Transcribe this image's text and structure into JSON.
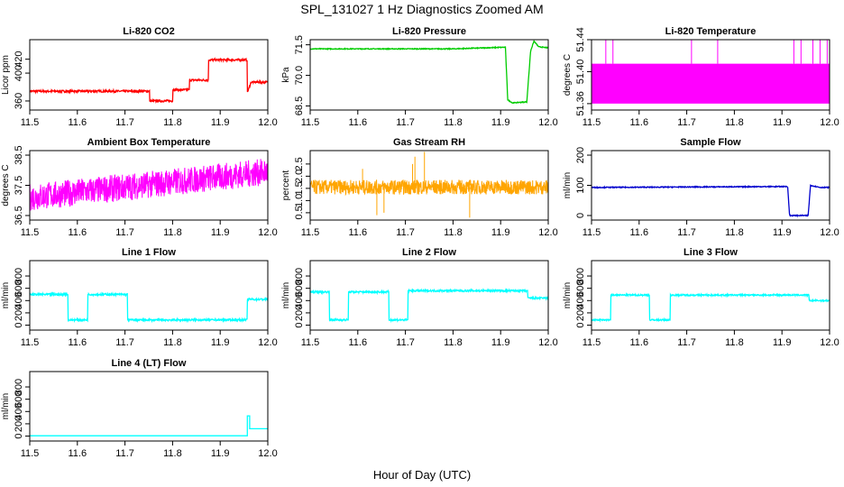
{
  "figure": {
    "main_title": "SPL_131027  1 Hz Diagnostics Zoomed AM",
    "xlabel": "Hour of Day (UTC)"
  },
  "chart_data": [
    {
      "type": "line",
      "title": "Li-820 CO2",
      "ylabel": "Licor ppm",
      "color": "#ff0000",
      "xlim": [
        11.5,
        12.0
      ],
      "ylim": [
        347,
        448
      ],
      "xticks": [
        "11.5",
        "11.6",
        "11.7",
        "11.8",
        "11.9",
        "12.0"
      ],
      "yticks": [
        360,
        400,
        420
      ],
      "noise": 1.5,
      "series": [
        {
          "x": [
            11.5,
            11.752,
            11.752,
            11.8,
            11.8,
            11.835,
            11.835,
            11.875,
            11.875,
            11.957,
            11.957,
            11.965,
            12.0
          ],
          "values": [
            374,
            374,
            360,
            360,
            376,
            376,
            390,
            390,
            419,
            419,
            372,
            387,
            387
          ]
        }
      ]
    },
    {
      "type": "line",
      "title": "Li-820 Pressure",
      "ylabel": "kPa",
      "color": "#00cc00",
      "xlim": [
        11.5,
        12.0
      ],
      "ylim": [
        68.3,
        71.75
      ],
      "xticks": [
        "11.5",
        "11.6",
        "11.7",
        "11.8",
        "11.9",
        "12.0"
      ],
      "yticks": [
        "68.5",
        "70.0",
        "71.5"
      ],
      "noise": 0.02,
      "series": [
        {
          "x": [
            11.5,
            11.8,
            11.91,
            11.915,
            11.925,
            11.955,
            11.963,
            11.97,
            11.98,
            12.0
          ],
          "values": [
            71.3,
            71.3,
            71.38,
            68.8,
            68.65,
            68.7,
            71.2,
            71.68,
            71.4,
            71.35
          ]
        }
      ]
    },
    {
      "type": "line",
      "title": "Li-820 Temperature",
      "ylabel": "degrees C",
      "color": "#ff00ff",
      "xlim": [
        11.5,
        12.0
      ],
      "ylim": [
        51.352,
        51.44
      ],
      "xticks": [
        "11.5",
        "11.6",
        "11.7",
        "11.8",
        "11.9",
        "12.0"
      ],
      "yticks": [
        "51.36",
        "51.40",
        "51.44"
      ],
      "band_low": 51.36,
      "band_high": 51.41,
      "spike_value": 51.44,
      "spike_x": [
        11.53,
        11.545,
        11.71,
        11.765,
        11.925,
        11.94,
        11.965,
        11.98,
        11.995
      ]
    },
    {
      "type": "line",
      "title": "Ambient Box Temperature",
      "ylabel": "degrees C",
      "color": "#ff00ff",
      "xlim": [
        11.5,
        12.0
      ],
      "ylim": [
        36.35,
        38.65
      ],
      "xticks": [
        "11.5",
        "11.6",
        "11.7",
        "11.8",
        "11.9",
        "12.0"
      ],
      "yticks": [
        "36.5",
        "37.5",
        "38.5"
      ],
      "trend_start": [
        11.5,
        37.1
      ],
      "trend_end": [
        12.0,
        37.95
      ],
      "noise": 0.45
    },
    {
      "type": "line",
      "title": "Gas Stream RH",
      "ylabel": "percent",
      "color": "#ffa500",
      "xlim": [
        11.5,
        12.0
      ],
      "ylim": [
        0.2,
        3.05
      ],
      "xticks": [
        "11.5",
        "11.6",
        "11.7",
        "11.8",
        "11.9",
        "12.0"
      ],
      "yticks": [
        "0.5",
        "1.0",
        "1.5",
        "2.0",
        "2.5"
      ],
      "mean": 1.55,
      "noise": 0.3,
      "spikes": [
        [
          11.72,
          2.8
        ],
        [
          11.74,
          3.0
        ],
        [
          11.715,
          2.5
        ],
        [
          11.655,
          0.5
        ],
        [
          11.835,
          0.3
        ],
        [
          11.64,
          0.4
        ],
        [
          11.61,
          2.3
        ]
      ]
    },
    {
      "type": "line",
      "title": "Sample Flow",
      "ylabel": "ml/min",
      "color": "#0000cd",
      "xlim": [
        11.5,
        12.0
      ],
      "ylim": [
        -15,
        215
      ],
      "xticks": [
        "11.5",
        "11.6",
        "11.7",
        "11.8",
        "11.9",
        "12.0"
      ],
      "yticks": [
        0,
        100,
        200
      ],
      "noise": 1.5,
      "series": [
        {
          "x": [
            11.5,
            11.912,
            11.916,
            11.955,
            11.96,
            11.98,
            12.0
          ],
          "values": [
            93,
            96,
            0,
            0,
            100,
            93,
            93
          ]
        }
      ]
    },
    {
      "type": "line",
      "title": "Line 1 Flow",
      "ylabel": "ml/min",
      "color": "#00ffff",
      "xlim": [
        11.5,
        12.0
      ],
      "ylim": [
        -80,
        1050
      ],
      "xticks": [
        "11.5",
        "11.6",
        "11.7",
        "11.8",
        "11.9",
        "12.0"
      ],
      "yticks": [
        0,
        200,
        400,
        600,
        800
      ],
      "noise": 15,
      "series": [
        {
          "x": [
            11.5,
            11.58,
            11.58,
            11.622,
            11.622,
            11.705,
            11.705,
            11.957,
            11.957,
            12.0
          ],
          "values": [
            500,
            500,
            85,
            85,
            500,
            500,
            85,
            85,
            420,
            420
          ]
        }
      ]
    },
    {
      "type": "line",
      "title": "Line 2 Flow",
      "ylabel": "ml/min",
      "color": "#00ffff",
      "xlim": [
        11.5,
        12.0
      ],
      "ylim": [
        -80,
        1050
      ],
      "xticks": [
        "11.5",
        "11.6",
        "11.7",
        "11.8",
        "11.9",
        "12.0"
      ],
      "yticks": [
        0,
        200,
        400,
        600,
        800
      ],
      "noise": 15,
      "series": [
        {
          "x": [
            11.5,
            11.54,
            11.54,
            11.58,
            11.58,
            11.665,
            11.665,
            11.705,
            11.705,
            11.957,
            11.957,
            12.0
          ],
          "values": [
            540,
            540,
            85,
            85,
            540,
            540,
            85,
            85,
            560,
            560,
            440,
            440
          ]
        }
      ]
    },
    {
      "type": "line",
      "title": "Line 3 Flow",
      "ylabel": "ml/min",
      "color": "#00ffff",
      "xlim": [
        11.5,
        12.0
      ],
      "ylim": [
        -80,
        1050
      ],
      "xticks": [
        "11.5",
        "11.6",
        "11.7",
        "11.8",
        "11.9",
        "12.0"
      ],
      "yticks": [
        0,
        200,
        400,
        600,
        800
      ],
      "noise": 12,
      "series": [
        {
          "x": [
            11.5,
            11.54,
            11.54,
            11.622,
            11.622,
            11.665,
            11.665,
            11.957,
            11.957,
            12.0
          ],
          "values": [
            85,
            85,
            490,
            490,
            85,
            85,
            490,
            490,
            400,
            400
          ]
        }
      ]
    },
    {
      "type": "line",
      "title": "Line 4 (LT) Flow",
      "ylabel": "ml/min",
      "color": "#00ffff",
      "xlim": [
        11.5,
        12.0
      ],
      "ylim": [
        -80,
        1050
      ],
      "xticks": [
        "11.5",
        "11.6",
        "11.7",
        "11.8",
        "11.9",
        "12.0"
      ],
      "yticks": [
        0,
        200,
        400,
        600,
        800
      ],
      "noise": 0,
      "series": [
        {
          "x": [
            11.5,
            11.957,
            11.957,
            11.962,
            11.962,
            12.0
          ],
          "values": [
            5,
            5,
            330,
            330,
            120,
            120
          ]
        }
      ]
    }
  ]
}
